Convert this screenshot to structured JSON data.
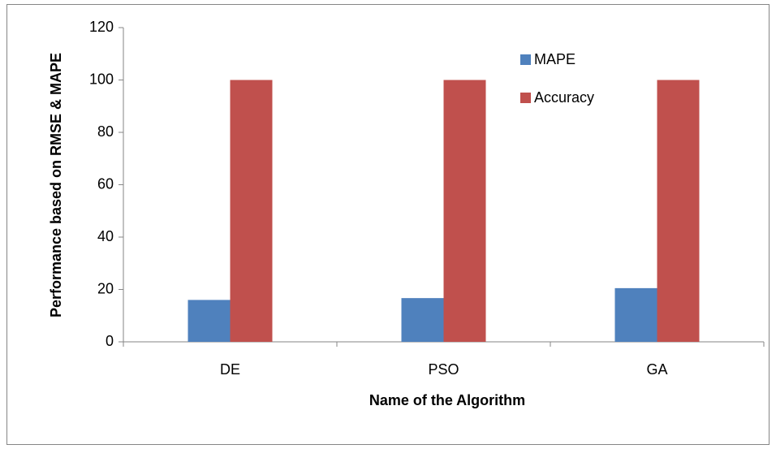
{
  "chart_data": {
    "type": "bar",
    "x_label": "Name of the Algorithm",
    "y_label": "Performance based on RMSE & MAPE",
    "categories": [
      "DE",
      "PSO",
      "GA"
    ],
    "series": [
      {
        "name": "MAPE",
        "color": "#4f81bd",
        "values": [
          16,
          16.7,
          20.5
        ]
      },
      {
        "name": "Accuracy",
        "color": "#c0504d",
        "values": [
          100,
          100,
          100
        ]
      }
    ],
    "ylim": [
      0,
      120
    ],
    "yticks": [
      0,
      20,
      40,
      60,
      80,
      100,
      120
    ],
    "grid": false,
    "legend": "top-right"
  }
}
